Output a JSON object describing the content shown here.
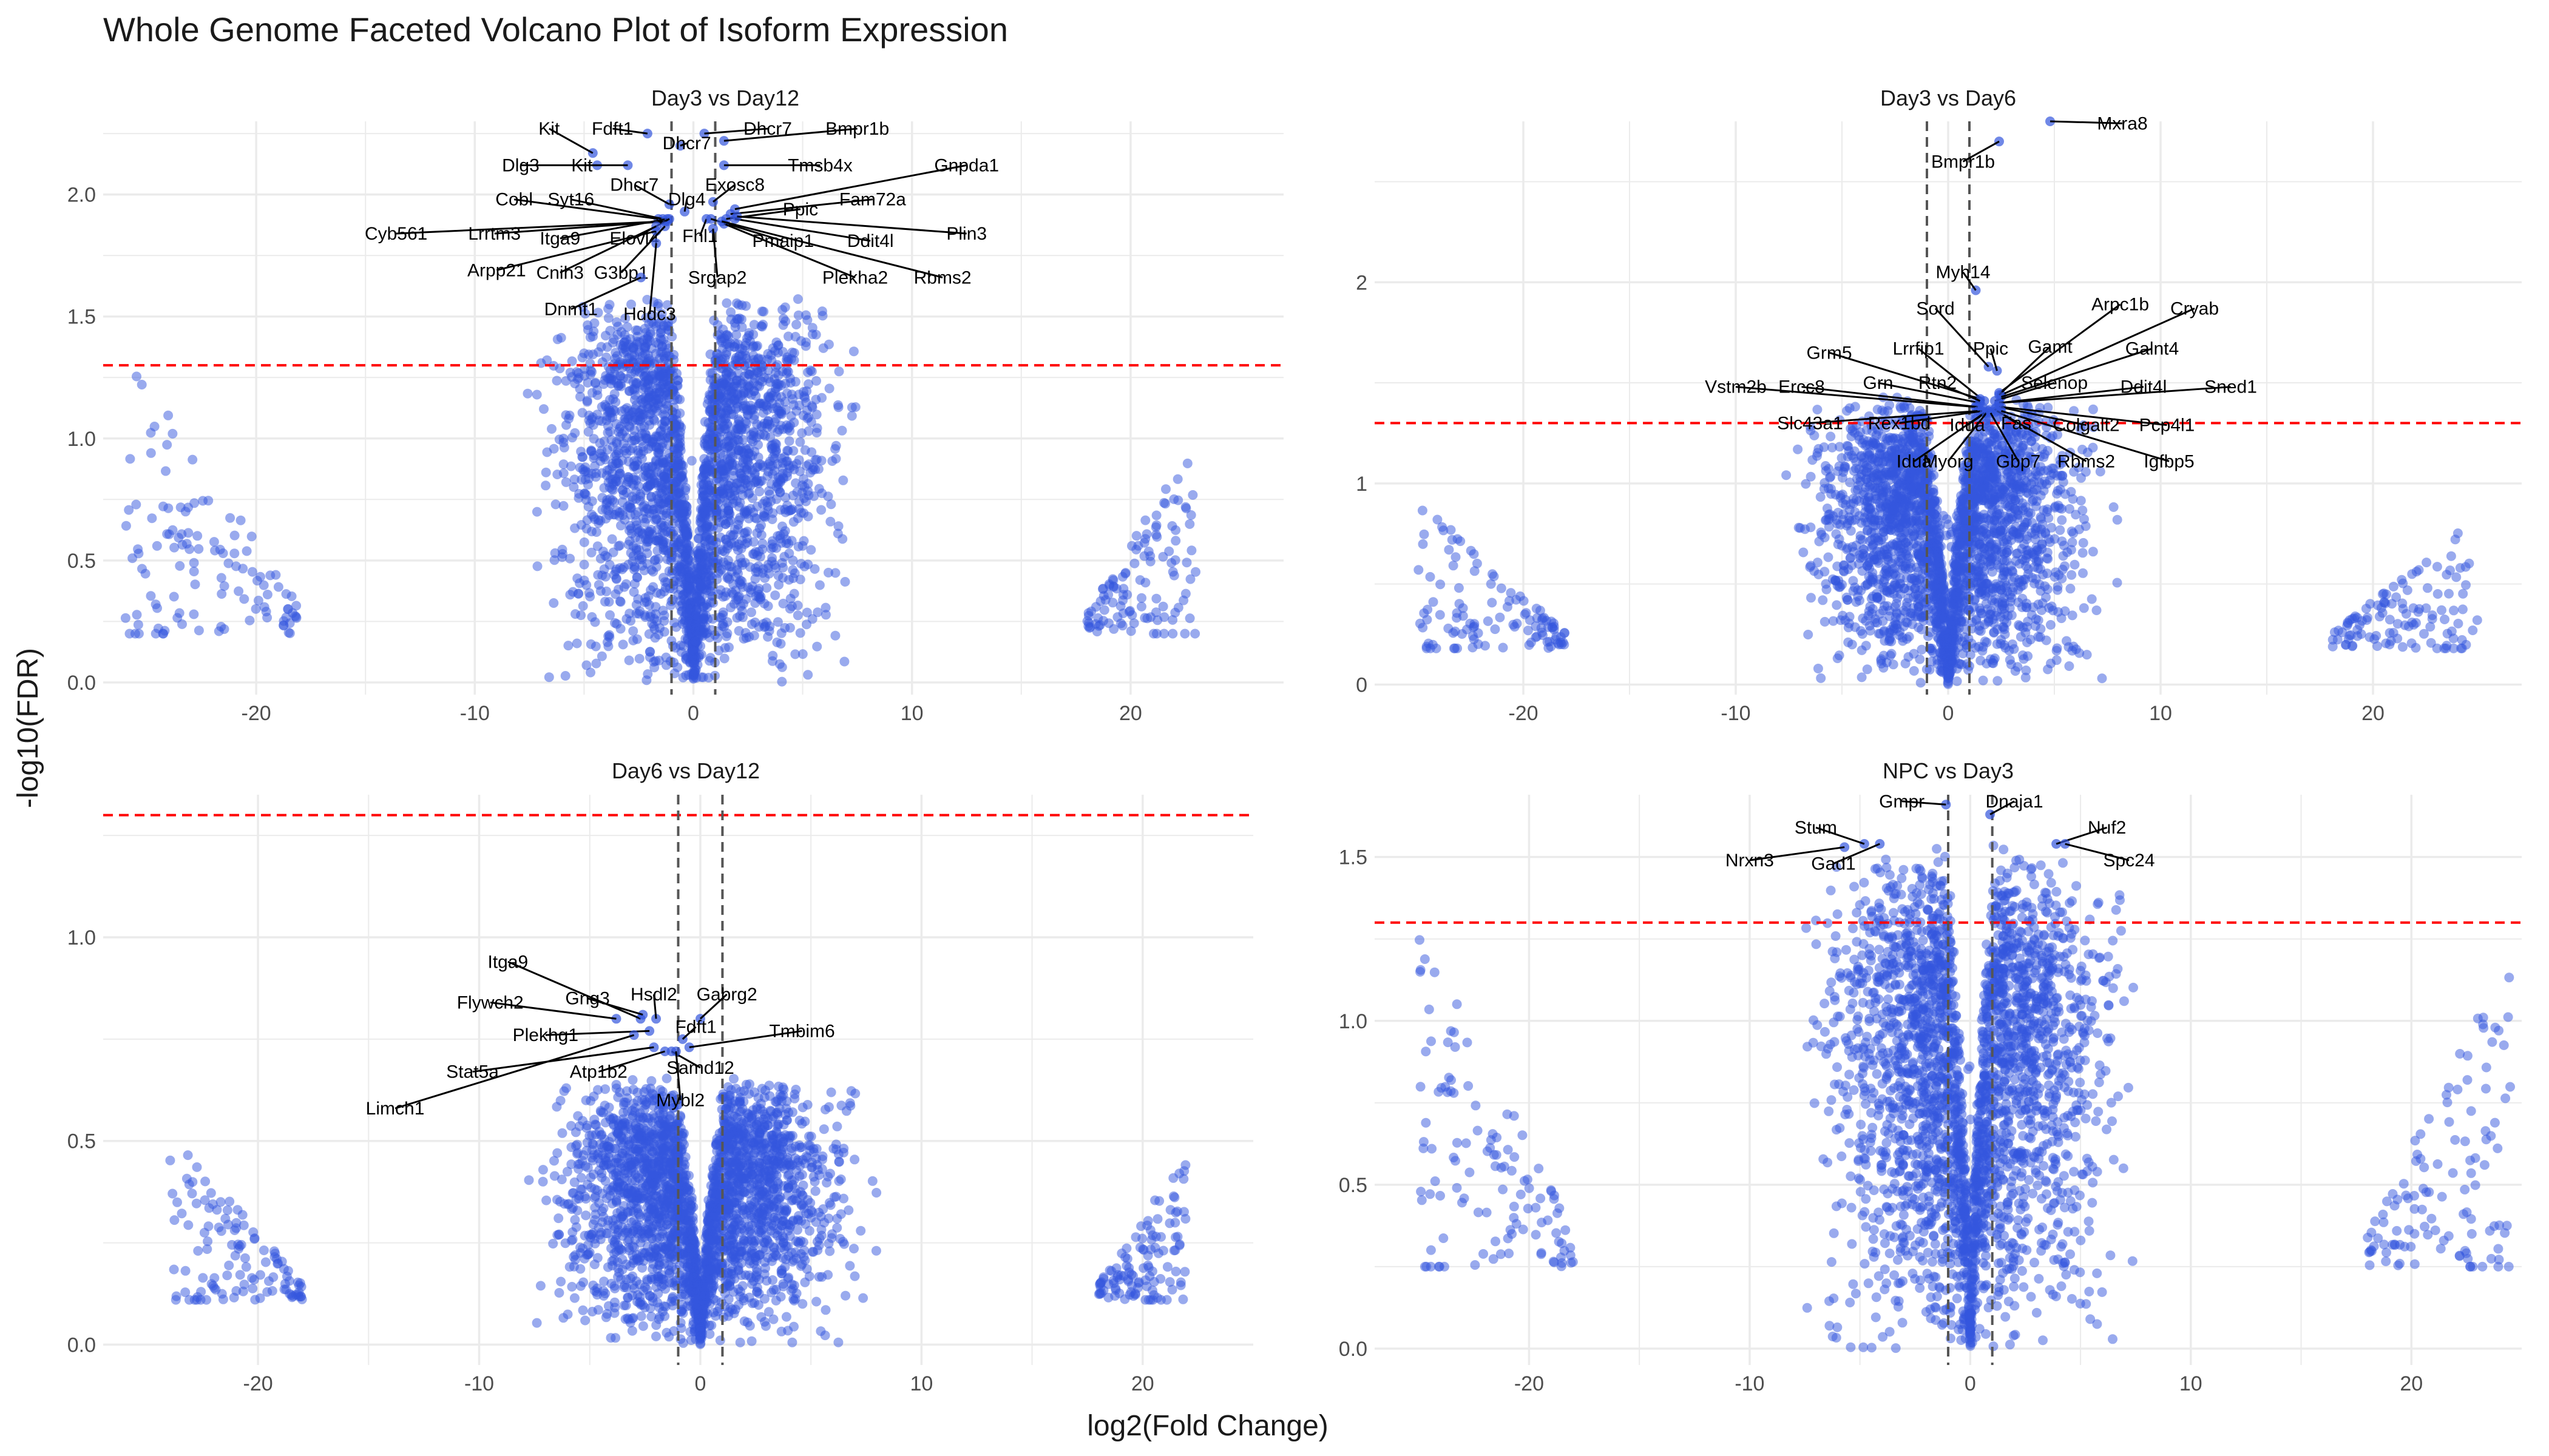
{
  "title": "Whole Genome Faceted Volcano Plot of Isoform Expression",
  "xlabel": "log2(Fold Change)",
  "ylabel": "-log10(FDR)",
  "colors": {
    "point": "#3355dd",
    "significance_line": "#ff0000",
    "fold_line": "#555555",
    "grid": "#ebebeb"
  },
  "chart_data": [
    {
      "type": "scatter",
      "facet": "Day3 vs Day12",
      "x_ticks": [
        -20,
        -10,
        0,
        10,
        20
      ],
      "y_ticks": [
        0.0,
        0.5,
        1.0,
        1.5,
        2.0
      ],
      "y_tick_labels": [
        "0.0",
        "0.5",
        "1.0",
        "1.5",
        "2.0"
      ],
      "xlim": [
        -27,
        27
      ],
      "ylim": [
        -0.05,
        2.3
      ],
      "fdr_threshold": 1.3,
      "fc_thresholds": [
        -1,
        1
      ],
      "cloud": {
        "cx": 0,
        "width": 5.5,
        "max_fdr": 1.6
      },
      "left_cluster": {
        "xmin": -26,
        "xmax": -18,
        "ymin": 0.2,
        "ymax": 1.36
      },
      "right_cluster": {
        "xmin": 18,
        "xmax": 23,
        "ymin": 0.2,
        "ymax": 1.0
      },
      "labels": [
        {
          "gene": "Kit",
          "x": -4.6,
          "y": 2.17,
          "lx": -6.6,
          "ly": 2.27
        },
        {
          "gene": "Fdft1",
          "x": -2.1,
          "y": 2.25,
          "lx": -3.7,
          "ly": 2.27
        },
        {
          "gene": "Dhcr7",
          "x": 0.5,
          "y": 2.25,
          "lx": 3.4,
          "ly": 2.27
        },
        {
          "gene": "Bmpr1b",
          "x": 1.4,
          "y": 2.22,
          "lx": 7.5,
          "ly": 2.27
        },
        {
          "gene": "Dhcr7",
          "x": -0.6,
          "y": 2.2,
          "lx": -0.3,
          "ly": 2.21
        },
        {
          "gene": "Dlg3",
          "x": -4.4,
          "y": 2.12,
          "lx": -7.9,
          "ly": 2.12
        },
        {
          "gene": "Kit",
          "x": -3.0,
          "y": 2.12,
          "lx": -5.1,
          "ly": 2.12
        },
        {
          "gene": "Tmsb4x",
          "x": 1.4,
          "y": 2.12,
          "lx": 5.8,
          "ly": 2.12
        },
        {
          "gene": "Gnpda1",
          "x": 1.9,
          "y": 1.94,
          "lx": 12.5,
          "ly": 2.12
        },
        {
          "gene": "Dhcr7",
          "x": -1.1,
          "y": 1.96,
          "lx": -2.7,
          "ly": 2.04
        },
        {
          "gene": "Exosc8",
          "x": 0.9,
          "y": 1.97,
          "lx": 1.9,
          "ly": 2.04
        },
        {
          "gene": "Cobl",
          "x": -1.6,
          "y": 1.9,
          "lx": -8.2,
          "ly": 1.98
        },
        {
          "gene": "Syt16",
          "x": -1.4,
          "y": 1.9,
          "lx": -5.6,
          "ly": 1.98
        },
        {
          "gene": "Dlg4",
          "x": -0.4,
          "y": 1.93,
          "lx": -0.3,
          "ly": 1.98
        },
        {
          "gene": "Fam72a",
          "x": 1.7,
          "y": 1.92,
          "lx": 8.2,
          "ly": 1.98
        },
        {
          "gene": "Ppic",
          "x": 1.5,
          "y": 1.9,
          "lx": 4.9,
          "ly": 1.94
        },
        {
          "gene": "Cyb561",
          "x": -1.3,
          "y": 1.89,
          "lx": -13.6,
          "ly": 1.84
        },
        {
          "gene": "Lrrtm3",
          "x": -1.2,
          "y": 1.89,
          "lx": -9.1,
          "ly": 1.84
        },
        {
          "gene": "Itga9",
          "x": -1.2,
          "y": 1.9,
          "lx": -6.1,
          "ly": 1.82
        },
        {
          "gene": "Elovl4",
          "x": -1.1,
          "y": 1.9,
          "lx": -2.7,
          "ly": 1.82
        },
        {
          "gene": "Fhl1",
          "x": 0.6,
          "y": 1.9,
          "lx": 0.3,
          "ly": 1.83
        },
        {
          "gene": "Pmaip1",
          "x": 0.8,
          "y": 1.9,
          "lx": 4.1,
          "ly": 1.81
        },
        {
          "gene": "Ddit4l",
          "x": 1.9,
          "y": 1.9,
          "lx": 8.1,
          "ly": 1.81
        },
        {
          "gene": "Plin3",
          "x": 2.0,
          "y": 1.91,
          "lx": 12.5,
          "ly": 1.84
        },
        {
          "gene": "Arpp21",
          "x": -1.7,
          "y": 1.85,
          "lx": -9.0,
          "ly": 1.69
        },
        {
          "gene": "Cnih3",
          "x": -1.7,
          "y": 1.87,
          "lx": -6.1,
          "ly": 1.68
        },
        {
          "gene": "G3bp1",
          "x": -1.3,
          "y": 1.87,
          "lx": -3.3,
          "ly": 1.68
        },
        {
          "gene": "Srgap2",
          "x": 0.9,
          "y": 1.86,
          "lx": 1.1,
          "ly": 1.66
        },
        {
          "gene": "Plekha2",
          "x": 1.4,
          "y": 1.88,
          "lx": 7.4,
          "ly": 1.66
        },
        {
          "gene": "Rbms2",
          "x": 1.3,
          "y": 1.89,
          "lx": 11.4,
          "ly": 1.66
        },
        {
          "gene": "Dnmt1",
          "x": -2.4,
          "y": 1.66,
          "lx": -5.6,
          "ly": 1.53
        },
        {
          "gene": "Hddc3",
          "x": -1.7,
          "y": 1.8,
          "lx": -2.0,
          "ly": 1.51
        }
      ]
    },
    {
      "type": "scatter",
      "facet": "Day3 vs Day6",
      "x_ticks": [
        -20,
        -10,
        0,
        10,
        20
      ],
      "y_ticks": [
        0,
        1,
        2
      ],
      "y_tick_labels": [
        "0",
        "1",
        "2"
      ],
      "xlim": [
        -27,
        27
      ],
      "ylim": [
        -0.05,
        2.8
      ],
      "fdr_threshold": 1.3,
      "fc_thresholds": [
        -1,
        1
      ],
      "cloud": {
        "cx": 0,
        "width": 5.5,
        "max_fdr": 1.45
      },
      "left_cluster": {
        "xmin": -25,
        "xmax": -18,
        "ymin": 0.18,
        "ymax": 0.94
      },
      "right_cluster": {
        "xmin": 18,
        "xmax": 25,
        "ymin": 0.18,
        "ymax": 0.84
      },
      "labels": [
        {
          "gene": "Mxra8",
          "x": 4.8,
          "y": 2.8,
          "lx": 8.2,
          "ly": 2.79
        },
        {
          "gene": "Bmpr1b",
          "x": 2.4,
          "y": 2.7,
          "lx": 0.7,
          "ly": 2.6
        },
        {
          "gene": "Myh14",
          "x": 1.3,
          "y": 1.96,
          "lx": 0.7,
          "ly": 2.05
        },
        {
          "gene": "Sord",
          "x": 1.9,
          "y": 1.58,
          "lx": -0.6,
          "ly": 1.87
        },
        {
          "gene": "Arpc1b",
          "x": 2.4,
          "y": 1.45,
          "lx": 8.1,
          "ly": 1.89
        },
        {
          "gene": "Cryab",
          "x": 2.5,
          "y": 1.44,
          "lx": 11.6,
          "ly": 1.87
        },
        {
          "gene": "Ppic",
          "x": 2.3,
          "y": 1.56,
          "lx": 2.0,
          "ly": 1.67
        },
        {
          "gene": "Gamt",
          "x": 2.4,
          "y": 1.44,
          "lx": 4.8,
          "ly": 1.68
        },
        {
          "gene": "Galnt4",
          "x": 2.5,
          "y": 1.43,
          "lx": 9.6,
          "ly": 1.67
        },
        {
          "gene": "Lrrfip1",
          "x": 1.7,
          "y": 1.41,
          "lx": -1.4,
          "ly": 1.67
        },
        {
          "gene": "Grm5",
          "x": 1.5,
          "y": 1.42,
          "lx": -5.6,
          "ly": 1.65
        },
        {
          "gene": "Grn",
          "x": 1.5,
          "y": 1.4,
          "lx": -3.3,
          "ly": 1.5
        },
        {
          "gene": "Rtn2",
          "x": 1.5,
          "y": 1.41,
          "lx": -0.5,
          "ly": 1.5
        },
        {
          "gene": "Selenop",
          "x": 2.2,
          "y": 1.41,
          "lx": 5.0,
          "ly": 1.5
        },
        {
          "gene": "Vstm2b",
          "x": 1.3,
          "y": 1.38,
          "lx": -10.0,
          "ly": 1.48
        },
        {
          "gene": "Ercc8",
          "x": 1.4,
          "y": 1.38,
          "lx": -6.9,
          "ly": 1.48
        },
        {
          "gene": "Ddit4l",
          "x": 2.4,
          "y": 1.4,
          "lx": 9.2,
          "ly": 1.48
        },
        {
          "gene": "Sned1",
          "x": 2.4,
          "y": 1.4,
          "lx": 13.3,
          "ly": 1.48
        },
        {
          "gene": "Slc43a1",
          "x": 1.4,
          "y": 1.36,
          "lx": -6.5,
          "ly": 1.3
        },
        {
          "gene": "Rex1bd",
          "x": 1.6,
          "y": 1.36,
          "lx": -2.3,
          "ly": 1.3
        },
        {
          "gene": "Idua",
          "x": 1.9,
          "y": 1.36,
          "lx": 0.9,
          "ly": 1.29
        },
        {
          "gene": "Fas",
          "x": 2.2,
          "y": 1.37,
          "lx": 3.2,
          "ly": 1.3
        },
        {
          "gene": "Colgalt2",
          "x": 2.4,
          "y": 1.38,
          "lx": 6.5,
          "ly": 1.29
        },
        {
          "gene": "Pcp4l1",
          "x": 2.5,
          "y": 1.38,
          "lx": 10.3,
          "ly": 1.29
        },
        {
          "gene": "Idua",
          "x": 1.7,
          "y": 1.35,
          "lx": -1.6,
          "ly": 1.11
        },
        {
          "gene": "Myorg",
          "x": 1.8,
          "y": 1.35,
          "lx": 0.0,
          "ly": 1.11
        },
        {
          "gene": "Gbp7",
          "x": 2.0,
          "y": 1.35,
          "lx": 3.3,
          "ly": 1.11
        },
        {
          "gene": "Rbms2",
          "x": 2.3,
          "y": 1.36,
          "lx": 6.5,
          "ly": 1.11
        },
        {
          "gene": "Igfbp5",
          "x": 2.5,
          "y": 1.36,
          "lx": 10.4,
          "ly": 1.11
        }
      ]
    },
    {
      "type": "scatter",
      "facet": "Day6 vs Day12",
      "x_ticks": [
        -20,
        -10,
        0,
        10,
        20
      ],
      "y_ticks": [
        0.0,
        0.5,
        1.0
      ],
      "y_tick_labels": [
        "0.0",
        "0.5",
        "1.0"
      ],
      "xlim": [
        -27,
        25
      ],
      "ylim": [
        -0.05,
        1.35
      ],
      "fdr_threshold": 1.3,
      "fc_thresholds": [
        -1,
        1
      ],
      "cloud": {
        "cx": 0,
        "width": 5.5,
        "max_fdr": 0.66
      },
      "left_cluster": {
        "xmin": -24,
        "xmax": -18,
        "ymin": 0.11,
        "ymax": 0.53
      },
      "right_cluster": {
        "xmin": 18,
        "xmax": 22,
        "ymin": 0.11,
        "ymax": 0.48
      },
      "labels": [
        {
          "gene": "Itga9",
          "x": -2.7,
          "y": 0.8,
          "lx": -8.7,
          "ly": 0.94
        },
        {
          "gene": "Gng3",
          "x": -2.6,
          "y": 0.81,
          "lx": -5.1,
          "ly": 0.85
        },
        {
          "gene": "Hsdl2",
          "x": -2.0,
          "y": 0.8,
          "lx": -2.1,
          "ly": 0.86
        },
        {
          "gene": "Gabrg2",
          "x": 0.0,
          "y": 0.8,
          "lx": 1.2,
          "ly": 0.86
        },
        {
          "gene": "Flywch2",
          "x": -3.8,
          "y": 0.8,
          "lx": -9.5,
          "ly": 0.84
        },
        {
          "gene": "Fdft1",
          "x": -0.8,
          "y": 0.75,
          "lx": -0.2,
          "ly": 0.78
        },
        {
          "gene": "Tmbim6",
          "x": -0.5,
          "y": 0.73,
          "lx": 4.6,
          "ly": 0.77
        },
        {
          "gene": "Plekhg1",
          "x": -2.3,
          "y": 0.77,
          "lx": -7.0,
          "ly": 0.76
        },
        {
          "gene": "Samd12",
          "x": -1.3,
          "y": 0.72,
          "lx": 0.0,
          "ly": 0.68
        },
        {
          "gene": "Stat5a",
          "x": -2.1,
          "y": 0.73,
          "lx": -10.3,
          "ly": 0.67
        },
        {
          "gene": "Atp1b2",
          "x": -1.6,
          "y": 0.72,
          "lx": -4.6,
          "ly": 0.67
        },
        {
          "gene": "Mybl2",
          "x": -1.1,
          "y": 0.72,
          "lx": -0.9,
          "ly": 0.6
        },
        {
          "gene": "Limch1",
          "x": -3.0,
          "y": 0.76,
          "lx": -13.8,
          "ly": 0.58
        }
      ]
    },
    {
      "type": "scatter",
      "facet": "NPC vs Day3",
      "x_ticks": [
        -20,
        -10,
        0,
        10,
        20
      ],
      "y_ticks": [
        0.0,
        0.5,
        1.0,
        1.5
      ],
      "y_tick_labels": [
        "0.0",
        "0.5",
        "1.0",
        "1.5"
      ],
      "xlim": [
        -27,
        25
      ],
      "ylim": [
        -0.05,
        1.69
      ],
      "fdr_threshold": 1.3,
      "fc_thresholds": [
        -1,
        1
      ],
      "cloud": {
        "cx": 0,
        "width": 5.5,
        "max_fdr": 1.54
      },
      "left_cluster": {
        "xmin": -25,
        "xmax": -18,
        "ymin": 0.25,
        "ymax": 1.29
      },
      "right_cluster": {
        "xmin": 18,
        "xmax": 24.5,
        "ymin": 0.25,
        "ymax": 1.22
      },
      "labels": [
        {
          "gene": "Gmpr",
          "x": -1.1,
          "y": 1.66,
          "lx": -3.1,
          "ly": 1.67
        },
        {
          "gene": "Dnaja1",
          "x": 0.9,
          "y": 1.63,
          "lx": 2.0,
          "ly": 1.67
        },
        {
          "gene": "Stum",
          "x": -4.8,
          "y": 1.54,
          "lx": -7.0,
          "ly": 1.59
        },
        {
          "gene": "Nuf2",
          "x": 3.9,
          "y": 1.54,
          "lx": 6.2,
          "ly": 1.59
        },
        {
          "gene": "Nrxn3",
          "x": -5.7,
          "y": 1.53,
          "lx": -10.0,
          "ly": 1.49
        },
        {
          "gene": "Gad1",
          "x": -4.1,
          "y": 1.54,
          "lx": -6.2,
          "ly": 1.48
        },
        {
          "gene": "Spc24",
          "x": 4.3,
          "y": 1.54,
          "lx": 7.2,
          "ly": 1.49
        }
      ]
    }
  ]
}
